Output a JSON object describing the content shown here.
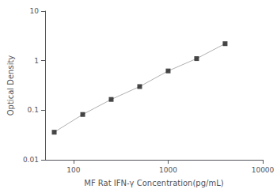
{
  "chart_data": {
    "type": "line",
    "xlabel": "MF Rat IFN-γ Concentration(pg/mL)",
    "ylabel": "Optical Density",
    "x": [
      62.5,
      125,
      250,
      500,
      1000,
      2000,
      4000
    ],
    "series": [
      {
        "type": "line",
        "color": "#b0b0b0",
        "values": [
          0.036,
          0.082,
          0.165,
          0.3,
          0.62,
          1.1,
          2.2
        ]
      },
      {
        "type": "scatter",
        "color": "#1a1a1a",
        "marker": "square",
        "values": [
          0.036,
          0.082,
          0.165,
          0.3,
          0.62,
          1.1,
          2.2
        ]
      }
    ],
    "xlim": [
      50,
      10000
    ],
    "ylim": [
      0.01,
      10
    ],
    "xticks": [
      100,
      1000,
      10000
    ],
    "yticks": [
      0.01,
      0.1,
      1,
      10
    ],
    "log": true,
    "grid": false
  }
}
